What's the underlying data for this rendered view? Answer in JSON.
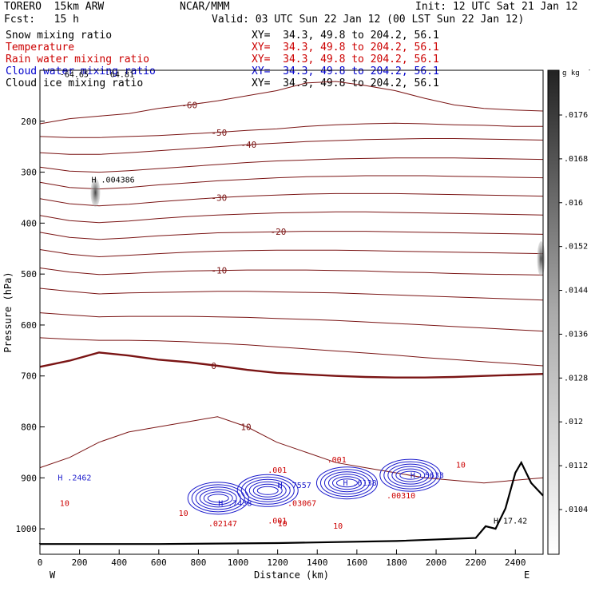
{
  "header": {
    "model": "TORERO  15km ARW",
    "org": "NCAR/MMM",
    "init": "Init: 12 UTC Sat 21 Jan 12",
    "fcst": "Fcst:   15 h",
    "valid": "Valid: 03 UTC Sun 22 Jan 12 (00 LST Sun 22 Jan 12)"
  },
  "legend": [
    {
      "name": "Snow mixing ratio",
      "xy": "XY=  34.3, 49.8 to 204.2, 56.1",
      "color": "#000000"
    },
    {
      "name": "Temperature",
      "xy": "XY=  34.3, 49.8 to 204.2, 56.1",
      "color": "#cc0000"
    },
    {
      "name": "Rain water mixing ratio",
      "xy": "XY=  34.3, 49.8 to 204.2, 56.1",
      "color": "#cc0000"
    },
    {
      "name": "Cloud water mixing ratio",
      "xy": "XY=  34.3, 49.8 to 204.2, 56.1",
      "color": "#0000cc"
    },
    {
      "name": "Cloud ice mixing ratio",
      "xy": "XY=  34.3, 49.8 to 204.2, 56.1",
      "color": "#000000"
    }
  ],
  "chart_data": {
    "type": "contour",
    "xlabel": "Distance (km)",
    "ylabel": "Pressure (hPa)",
    "xlim": [
      0,
      2540
    ],
    "ylim": [
      1050,
      100
    ],
    "x_ticks": [
      0,
      200,
      400,
      600,
      800,
      1000,
      1200,
      1400,
      1600,
      1800,
      2000,
      2200,
      2400
    ],
    "y_ticks": [
      200,
      300,
      400,
      500,
      600,
      700,
      800,
      900,
      1000
    ],
    "x_ends": {
      "left": "W",
      "right": "E"
    },
    "colorbar": {
      "unit": "g kg",
      "unit_exp": "-1",
      "ticks": [
        ".0104",
        ".0112",
        ".012",
        ".0128",
        ".0136",
        ".0144",
        ".0152",
        ".016",
        ".0168",
        ".0176"
      ]
    },
    "temperature_isotherms": [
      {
        "label": "-60",
        "y": [
          205,
          195,
          190,
          185,
          175,
          168,
          160,
          150,
          140,
          125,
          122,
          130,
          140,
          155,
          168,
          175,
          178,
          180
        ]
      },
      {
        "label": "-50",
        "y": [
          230,
          232,
          232,
          230,
          228,
          225,
          222,
          218,
          215,
          210,
          207,
          205,
          204,
          205,
          207,
          208,
          210,
          210
        ]
      },
      {
        "label": "-40",
        "y": [
          262,
          265,
          265,
          262,
          258,
          254,
          250,
          246,
          243,
          240,
          238,
          236,
          235,
          234,
          234,
          235,
          236,
          237
        ]
      },
      {
        "label": "",
        "y": [
          290,
          298,
          300,
          297,
          293,
          289,
          285,
          281,
          278,
          276,
          274,
          273,
          272,
          272,
          272,
          273,
          274,
          275
        ]
      },
      {
        "label": "",
        "y": [
          320,
          330,
          333,
          330,
          325,
          321,
          317,
          314,
          311,
          309,
          308,
          307,
          307,
          307,
          308,
          309,
          310,
          311
        ]
      },
      {
        "label": "-30",
        "y": [
          352,
          362,
          366,
          363,
          358,
          354,
          350,
          347,
          345,
          343,
          342,
          342,
          342,
          343,
          344,
          345,
          346,
          347
        ]
      },
      {
        "label": "",
        "y": [
          385,
          395,
          399,
          396,
          391,
          387,
          384,
          382,
          380,
          379,
          378,
          378,
          379,
          380,
          381,
          382,
          383,
          384
        ]
      },
      {
        "label": "-20",
        "y": [
          418,
          428,
          432,
          429,
          425,
          422,
          419,
          418,
          417,
          416,
          416,
          416,
          417,
          418,
          419,
          420,
          421,
          422
        ]
      },
      {
        "label": "",
        "y": [
          452,
          461,
          466,
          463,
          460,
          457,
          455,
          454,
          453,
          453,
          453,
          454,
          455,
          456,
          457,
          458,
          459,
          460
        ]
      },
      {
        "label": "-10",
        "y": [
          488,
          496,
          501,
          499,
          496,
          494,
          493,
          492,
          492,
          492,
          493,
          494,
          496,
          497,
          499,
          500,
          501,
          502
        ]
      },
      {
        "label": "",
        "y": [
          528,
          534,
          539,
          537,
          536,
          535,
          534,
          534,
          535,
          536,
          537,
          539,
          541,
          543,
          545,
          547,
          549,
          551
        ]
      },
      {
        "label": "",
        "y": [
          576,
          580,
          584,
          583,
          583,
          583,
          584,
          585,
          587,
          589,
          591,
          594,
          597,
          600,
          603,
          606,
          609,
          612
        ]
      },
      {
        "label": "",
        "y": [
          625,
          628,
          630,
          630,
          631,
          633,
          636,
          639,
          643,
          647,
          651,
          655,
          659,
          664,
          668,
          672,
          676,
          680
        ]
      },
      {
        "label": "0",
        "y": [
          682,
          670,
          654,
          660,
          668,
          673,
          680,
          688,
          694,
          697,
          700,
          702,
          703,
          703,
          702,
          700,
          698,
          696
        ]
      },
      {
        "label": "10",
        "y": [
          880,
          860,
          830,
          810,
          800,
          790,
          780,
          800,
          830,
          850,
          870,
          880,
          890,
          900,
          905,
          910,
          905,
          900
        ]
      }
    ],
    "max_labels": [
      {
        "x": 260,
        "p": 320,
        "text": "H .004386"
      },
      {
        "x": 90,
        "p": 905,
        "text": "H .2462"
      },
      {
        "x": 900,
        "p": 955,
        "text": "H .7438"
      },
      {
        "x": 1200,
        "p": 920,
        "text": "H .7557"
      },
      {
        "x": 1530,
        "p": 915,
        "text": "H .6138"
      },
      {
        "x": 1870,
        "p": 900,
        "text": "H .5633"
      },
      {
        "x": 2290,
        "p": 990,
        "text": "H 17.42"
      },
      {
        "x": 1750,
        "p": 940,
        "text": ".00310"
      },
      {
        "x": 1250,
        "p": 955,
        "text": ".03067"
      },
      {
        "x": 850,
        "p": 995,
        "text": ".02147"
      },
      {
        "x": 1150,
        "p": 890,
        "text": ".001"
      },
      {
        "x": 1450,
        "p": 870,
        "text": ".001"
      },
      {
        "x": 1150,
        "p": 990,
        "text": ".001"
      },
      {
        "x": 1200,
        "p": 995,
        "text": "10"
      },
      {
        "x": 1480,
        "p": 1000,
        "text": "10"
      },
      {
        "x": 2100,
        "p": 880,
        "text": "10"
      },
      {
        "x": 100,
        "p": 955,
        "text": "10"
      },
      {
        "x": 700,
        "p": 975,
        "text": "10"
      },
      {
        "x": 100,
        "p": 113,
        "text": "-64.65"
      },
      {
        "x": 330,
        "p": 113,
        "text": "-64.81"
      }
    ]
  }
}
